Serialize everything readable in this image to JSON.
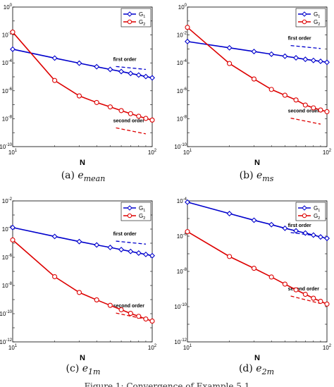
{
  "chart_data": [
    {
      "type": "line",
      "caption_label": "(a)",
      "caption_symbol": "e",
      "caption_sub": "mean",
      "xlabel": "N",
      "xscale": "log",
      "yscale": "log",
      "xlim": [
        10,
        100
      ],
      "ylim": [
        1e-10,
        1
      ],
      "y_ticks": [
        "10^0",
        "10^-2",
        "10^-4",
        "10^-6",
        "10^-8",
        "10^-10"
      ],
      "x_ticks": [
        "10^1",
        "10^2"
      ],
      "legend": {
        "position": "top-right",
        "entries": [
          "G_1",
          "G_2"
        ]
      },
      "colors": [
        "#0000cc",
        "#dd0000"
      ],
      "series": [
        {
          "name": "G_1",
          "x": [
            10,
            20,
            30,
            40,
            50,
            60,
            70,
            80,
            90,
            100
          ],
          "y": [
            0.00095,
            0.00022,
            9.5e-05,
            5.3e-05,
            3.4e-05,
            2.4e-05,
            1.75e-05,
            1.35e-05,
            1.05e-05,
            8.5e-06
          ]
        },
        {
          "name": "G_2",
          "x": [
            10,
            20,
            30,
            40,
            50,
            60,
            70,
            80,
            90,
            100
          ],
          "y": [
            0.016,
            5.5e-06,
            4.3e-07,
            1.45e-07,
            7e-08,
            3.8e-08,
            2.3e-08,
            1.5e-08,
            1.05e-08,
            8e-09
          ]
        }
      ],
      "reference_lines": [
        {
          "label": "first order",
          "color": "#0000cc",
          "x": [
            55,
            90
          ],
          "y": [
            5.5e-05,
            3.4e-05
          ]
        },
        {
          "label": "second order",
          "color": "#dd0000",
          "x": [
            55,
            90
          ],
          "y": [
            2.2e-09,
            8.2e-10
          ]
        }
      ]
    },
    {
      "type": "line",
      "caption_label": "(b)",
      "caption_symbol": "e",
      "caption_sub": "ms",
      "xlabel": "N",
      "xscale": "log",
      "yscale": "log",
      "xlim": [
        10,
        100
      ],
      "ylim": [
        1e-10,
        1
      ],
      "y_ticks": [
        "10^0",
        "10^-2",
        "10^-4",
        "10^-6",
        "10^-8",
        "10^-10"
      ],
      "x_ticks": [
        "10^1",
        "10^2"
      ],
      "legend": {
        "position": "top-right",
        "entries": [
          "G_1",
          "G_2"
        ]
      },
      "colors": [
        "#0000cc",
        "#dd0000"
      ],
      "series": [
        {
          "name": "G_1",
          "x": [
            10,
            20,
            30,
            40,
            50,
            60,
            70,
            80,
            90,
            100
          ],
          "y": [
            0.0034,
            0.0012,
            0.00065,
            0.00042,
            0.0003,
            0.00023,
            0.00018,
            0.00015,
            0.00013,
            0.00011
          ]
        },
        {
          "name": "G_2",
          "x": [
            10,
            20,
            30,
            40,
            50,
            60,
            70,
            80,
            90,
            100
          ],
          "y": [
            0.035,
            9e-05,
            7e-06,
            1.25e-06,
            4.8e-07,
            2.2e-07,
            9.5e-08,
            6e-08,
            4.2e-08,
            3.2e-08
          ]
        }
      ],
      "reference_lines": [
        {
          "label": "first order",
          "color": "#0000cc",
          "x": [
            55,
            90
          ],
          "y": [
            0.00175,
            0.00107
          ]
        },
        {
          "label": "second order",
          "color": "#dd0000",
          "x": [
            55,
            90
          ],
          "y": [
            1.1e-08,
            4.1e-09
          ]
        }
      ]
    },
    {
      "type": "line",
      "caption_label": "(c)",
      "caption_symbol": "e",
      "caption_sub": "1m",
      "xlabel": "N",
      "xscale": "log",
      "yscale": "log",
      "xlim": [
        10,
        100
      ],
      "ylim": [
        1e-12,
        0.01
      ],
      "y_ticks": [
        "10^-2",
        "10^-4",
        "10^-6",
        "10^-8",
        "10^-10",
        "10^-12"
      ],
      "x_ticks": [
        "10^1",
        "10^2"
      ],
      "legend": {
        "position": "top-right",
        "entries": [
          "G_1",
          "G_2"
        ]
      },
      "colors": [
        "#0000cc",
        "#dd0000"
      ],
      "series": [
        {
          "name": "G_1",
          "x": [
            10,
            20,
            30,
            40,
            50,
            60,
            70,
            80,
            90,
            100
          ],
          "y": [
            0.00013,
            3e-05,
            1.3e-05,
            7.5e-06,
            5e-06,
            3.5e-06,
            2.6e-06,
            2e-06,
            1.6e-06,
            1.3e-06
          ]
        },
        {
          "name": "G_2",
          "x": [
            10,
            20,
            30,
            40,
            50,
            60,
            70,
            80,
            90,
            100
          ],
          "y": [
            1.7e-05,
            4.2e-08,
            3.2e-09,
            9.5e-10,
            3.9e-10,
            1.9e-10,
            1.05e-10,
            6.5e-11,
            4.2e-11,
            3e-11
          ]
        }
      ],
      "reference_lines": [
        {
          "label": "first order",
          "color": "#0000cc",
          "x": [
            55,
            90
          ],
          "y": [
            1.4e-05,
            8.6e-06
          ]
        },
        {
          "label": "second order",
          "color": "#dd0000",
          "x": [
            55,
            90
          ],
          "y": [
            1.1e-10,
            4.1e-11
          ]
        }
      ]
    },
    {
      "type": "line",
      "caption_label": "(d)",
      "caption_symbol": "e",
      "caption_sub": "2m",
      "xlabel": "N",
      "xscale": "log",
      "yscale": "log",
      "xlim": [
        10,
        100
      ],
      "ylim": [
        1e-12,
        0.0001
      ],
      "y_ticks": [
        "10^-4",
        "10^-6",
        "10^-8",
        "10^-10",
        "10^-12"
      ],
      "x_ticks": [
        "10^1",
        "10^2"
      ],
      "legend": {
        "position": "top-right",
        "entries": [
          "G_1",
          "G_2"
        ]
      },
      "colors": [
        "#0000cc",
        "#dd0000"
      ],
      "series": [
        {
          "name": "G_1",
          "x": [
            10,
            20,
            30,
            40,
            50,
            60,
            70,
            80,
            90,
            100
          ],
          "y": [
            8.5e-05,
            1.9e-05,
            8e-06,
            4.5e-06,
            2.8e-06,
            2e-06,
            1.5e-06,
            1.15e-06,
            9e-07,
            7.5e-07
          ]
        },
        {
          "name": "G_2",
          "x": [
            10,
            20,
            30,
            40,
            50,
            60,
            70,
            80,
            90,
            100
          ],
          "y": [
            1.8e-06,
            7e-08,
            1.5e-08,
            4.8e-09,
            1.9e-09,
            9e-10,
            5e-10,
            3e-10,
            2e-10,
            1.4e-10
          ]
        }
      ],
      "reference_lines": [
        {
          "label": "first order",
          "color": "#0000cc",
          "x": [
            55,
            90
          ],
          "y": [
            1.6e-06,
            9.8e-07
          ]
        },
        {
          "label": "second order",
          "color": "#dd0000",
          "x": [
            55,
            90
          ],
          "y": [
            4e-10,
            1.5e-10
          ]
        }
      ]
    }
  ],
  "footer_text": "Figure 1: Convergence of Example 5.1"
}
